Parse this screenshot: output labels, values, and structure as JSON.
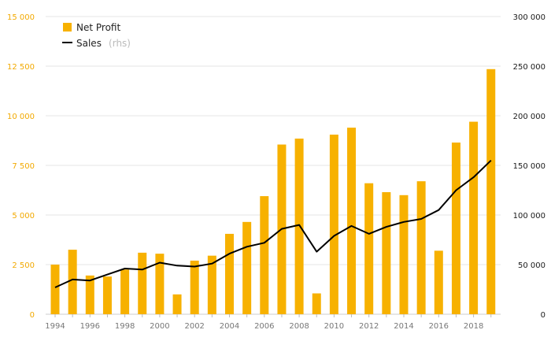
{
  "chart_data": {
    "type": "bar",
    "x": [
      1994,
      1995,
      1996,
      1997,
      1998,
      1999,
      2000,
      2001,
      2002,
      2003,
      2004,
      2005,
      2006,
      2007,
      2008,
      2009,
      2010,
      2011,
      2012,
      2013,
      2014,
      2015,
      2016,
      2017,
      2018,
      2019
    ],
    "x_tick_labels": [
      "1994",
      "1996",
      "1998",
      "2000",
      "2002",
      "2004",
      "2006",
      "2008",
      "2010",
      "2012",
      "2014",
      "2016",
      "2018"
    ],
    "series": [
      {
        "name": "Net Profit",
        "kind": "bar",
        "axis": "left",
        "color": "#f7b100",
        "values": [
          2500,
          3250,
          1950,
          1900,
          2250,
          3100,
          3050,
          1000,
          2700,
          2950,
          4050,
          4650,
          5950,
          8550,
          8850,
          1050,
          9050,
          9400,
          6600,
          6150,
          6000,
          6700,
          3200,
          8650,
          9700,
          12350
        ]
      },
      {
        "name": "Sales",
        "kind": "line",
        "axis": "right",
        "color": "#000000",
        "values": [
          27000,
          35000,
          34000,
          40000,
          46000,
          45000,
          52000,
          49000,
          48000,
          51000,
          61000,
          68000,
          72000,
          86000,
          90000,
          63000,
          79000,
          89000,
          81000,
          88000,
          93000,
          96000,
          105000,
          125000,
          138000,
          155000
        ]
      }
    ],
    "legend": [
      {
        "label": "Net Profit",
        "note": ""
      },
      {
        "label": "Sales",
        "note": "(rhs)"
      }
    ],
    "legend_position": "top-left",
    "y_left": {
      "min": 0,
      "max": 15000,
      "ticks": [
        0,
        2500,
        5000,
        7500,
        10000,
        12500,
        15000
      ],
      "tick_labels": [
        "0",
        "2 500",
        "5 000",
        "7 500",
        "10 000",
        "12 500",
        "15 000"
      ],
      "label_color": "#f2a900"
    },
    "y_right": {
      "min": 0,
      "max": 300000,
      "ticks": [
        0,
        50000,
        100000,
        150000,
        200000,
        250000,
        300000
      ],
      "tick_labels": [
        "0",
        "50 000",
        "100 000",
        "150 000",
        "200 000",
        "250 000",
        "300 000"
      ],
      "label_color": "#1a1a1a"
    },
    "grid": true,
    "title": "",
    "xlabel": "",
    "ylabel": ""
  }
}
